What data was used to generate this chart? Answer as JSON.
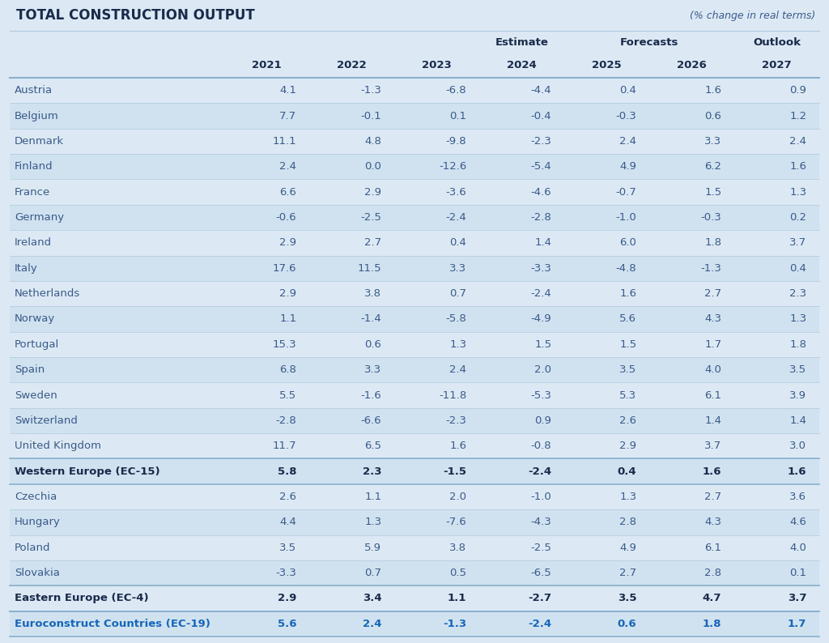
{
  "title": "TOTAL CONSTRUCTION OUTPUT",
  "subtitle": "(% change in real terms)",
  "rows": [
    {
      "country": "Austria",
      "values": [
        "4.1",
        "-1.3",
        "-6.8",
        "-4.4",
        "0.4",
        "1.6",
        "0.9"
      ],
      "bold": false,
      "blue": false
    },
    {
      "country": "Belgium",
      "values": [
        "7.7",
        "-0.1",
        "0.1",
        "-0.4",
        "-0.3",
        "0.6",
        "1.2"
      ],
      "bold": false,
      "blue": false
    },
    {
      "country": "Denmark",
      "values": [
        "11.1",
        "4.8",
        "-9.8",
        "-2.3",
        "2.4",
        "3.3",
        "2.4"
      ],
      "bold": false,
      "blue": false
    },
    {
      "country": "Finland",
      "values": [
        "2.4",
        "0.0",
        "-12.6",
        "-5.4",
        "4.9",
        "6.2",
        "1.6"
      ],
      "bold": false,
      "blue": false
    },
    {
      "country": "France",
      "values": [
        "6.6",
        "2.9",
        "-3.6",
        "-4.6",
        "-0.7",
        "1.5",
        "1.3"
      ],
      "bold": false,
      "blue": false
    },
    {
      "country": "Germany",
      "values": [
        "-0.6",
        "-2.5",
        "-2.4",
        "-2.8",
        "-1.0",
        "-0.3",
        "0.2"
      ],
      "bold": false,
      "blue": false
    },
    {
      "country": "Ireland",
      "values": [
        "2.9",
        "2.7",
        "0.4",
        "1.4",
        "6.0",
        "1.8",
        "3.7"
      ],
      "bold": false,
      "blue": false
    },
    {
      "country": "Italy",
      "values": [
        "17.6",
        "11.5",
        "3.3",
        "-3.3",
        "-4.8",
        "-1.3",
        "0.4"
      ],
      "bold": false,
      "blue": false
    },
    {
      "country": "Netherlands",
      "values": [
        "2.9",
        "3.8",
        "0.7",
        "-2.4",
        "1.6",
        "2.7",
        "2.3"
      ],
      "bold": false,
      "blue": false
    },
    {
      "country": "Norway",
      "values": [
        "1.1",
        "-1.4",
        "-5.8",
        "-4.9",
        "5.6",
        "4.3",
        "1.3"
      ],
      "bold": false,
      "blue": false
    },
    {
      "country": "Portugal",
      "values": [
        "15.3",
        "0.6",
        "1.3",
        "1.5",
        "1.5",
        "1.7",
        "1.8"
      ],
      "bold": false,
      "blue": false
    },
    {
      "country": "Spain",
      "values": [
        "6.8",
        "3.3",
        "2.4",
        "2.0",
        "3.5",
        "4.0",
        "3.5"
      ],
      "bold": false,
      "blue": false
    },
    {
      "country": "Sweden",
      "values": [
        "5.5",
        "-1.6",
        "-11.8",
        "-5.3",
        "5.3",
        "6.1",
        "3.9"
      ],
      "bold": false,
      "blue": false
    },
    {
      "country": "Switzerland",
      "values": [
        "-2.8",
        "-6.6",
        "-2.3",
        "0.9",
        "2.6",
        "1.4",
        "1.4"
      ],
      "bold": false,
      "blue": false
    },
    {
      "country": "United Kingdom",
      "values": [
        "11.7",
        "6.5",
        "1.6",
        "-0.8",
        "2.9",
        "3.7",
        "3.0"
      ],
      "bold": false,
      "blue": false
    },
    {
      "country": "Western Europe (EC-15)",
      "values": [
        "5.8",
        "2.3",
        "-1.5",
        "-2.4",
        "0.4",
        "1.6",
        "1.6"
      ],
      "bold": true,
      "blue": false
    },
    {
      "country": "Czechia",
      "values": [
        "2.6",
        "1.1",
        "2.0",
        "-1.0",
        "1.3",
        "2.7",
        "3.6"
      ],
      "bold": false,
      "blue": false
    },
    {
      "country": "Hungary",
      "values": [
        "4.4",
        "1.3",
        "-7.6",
        "-4.3",
        "2.8",
        "4.3",
        "4.6"
      ],
      "bold": false,
      "blue": false
    },
    {
      "country": "Poland",
      "values": [
        "3.5",
        "5.9",
        "3.8",
        "-2.5",
        "4.9",
        "6.1",
        "4.0"
      ],
      "bold": false,
      "blue": false
    },
    {
      "country": "Slovakia",
      "values": [
        "-3.3",
        "0.7",
        "0.5",
        "-6.5",
        "2.7",
        "2.8",
        "0.1"
      ],
      "bold": false,
      "blue": false
    },
    {
      "country": "Eastern Europe (EC-4)",
      "values": [
        "2.9",
        "3.4",
        "1.1",
        "-2.7",
        "3.5",
        "4.7",
        "3.7"
      ],
      "bold": true,
      "blue": false
    },
    {
      "country": "Euroconstruct Countries (EC-19)",
      "values": [
        "5.6",
        "2.4",
        "-1.3",
        "-2.4",
        "0.6",
        "1.8",
        "1.7"
      ],
      "bold": true,
      "blue": true
    }
  ],
  "bg_color": "#dce9f5",
  "row_bg_even": "#dce9f5",
  "row_bg_odd": "#d0e2f0",
  "separator_thin": "#b0c8dd",
  "separator_thick": "#8ab0cc",
  "text_normal": "#3a5a8a",
  "text_bold": "#1a2a4a",
  "text_blue": "#1565c0",
  "title_color": "#1a2a4a",
  "subtitle_color": "#3a5a8a",
  "header_text": "#1a2a4a"
}
